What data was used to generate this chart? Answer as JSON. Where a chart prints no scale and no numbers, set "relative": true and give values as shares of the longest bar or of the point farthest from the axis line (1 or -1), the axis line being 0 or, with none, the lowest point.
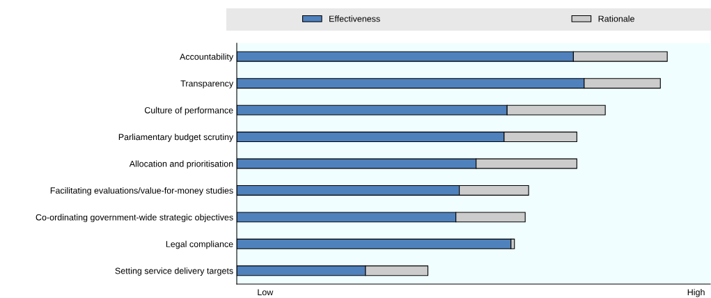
{
  "chart_data": {
    "type": "bar",
    "orientation": "horizontal",
    "stacked": true,
    "relative": true,
    "categories": [
      "Accountability",
      "Transparency",
      "Culture of performance",
      "Parliamentary budget scrutiny",
      "Allocation and prioritisation",
      "Facilitating evaluations/value-for-money studies",
      "Co-ordinating government-wide strategic objectives",
      "Legal compliance",
      "Setting service delivery targets"
    ],
    "series": [
      {
        "name": "Effectiveness",
        "color": "#4f81bd",
        "values": [
          0.782,
          0.807,
          0.628,
          0.621,
          0.556,
          0.517,
          0.509,
          0.637,
          0.299
        ]
      },
      {
        "name": "Rationale",
        "color": "#cccccc",
        "values": [
          0.218,
          0.177,
          0.228,
          0.169,
          0.234,
          0.161,
          0.161,
          0.008,
          0.145
        ]
      }
    ],
    "annotations": [
      "Low",
      "High"
    ],
    "legend": "top",
    "grid": false
  }
}
